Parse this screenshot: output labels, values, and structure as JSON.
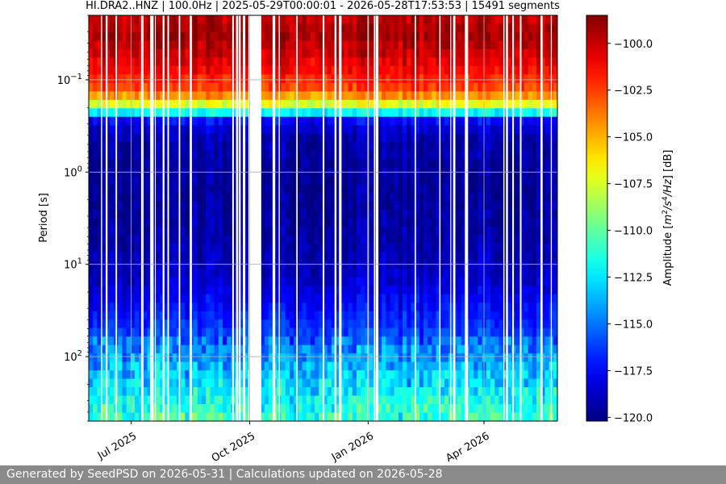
{
  "chart_data": {
    "type": "heatmap",
    "title": "HI.DRA2..HNZ | 100.0Hz | 2025-05-29T00:00:01 - 2026-05-28T17:53:53 | 15491 segments",
    "xlabel": "",
    "ylabel": "Period [s]",
    "x_range": [
      "2025-05-29",
      "2026-05-28"
    ],
    "x_ticks": [
      {
        "date": "2025-07-01",
        "label": "Jul 2025"
      },
      {
        "date": "2025-10-01",
        "label": "Oct 2025"
      },
      {
        "date": "2026-01-01",
        "label": "Jan 2026"
      },
      {
        "date": "2026-04-01",
        "label": "Apr 2026"
      }
    ],
    "y_scale": "log",
    "y_inverted": true,
    "y_range": [
      0.02,
      500
    ],
    "y_ticks": [
      {
        "value": 0.1,
        "base": "10",
        "exp": "−1"
      },
      {
        "value": 1,
        "base": "10",
        "exp": "0"
      },
      {
        "value": 10,
        "base": "10",
        "exp": "1"
      },
      {
        "value": 100,
        "base": "10",
        "exp": "2"
      }
    ],
    "grid": true,
    "colormap": "jet",
    "colorbar": {
      "label_parts": [
        {
          "t": "Amplitude [",
          "s": "n"
        },
        {
          "t": "m",
          "s": "i"
        },
        {
          "t": "2",
          "s": "sup"
        },
        {
          "t": "/",
          "s": "i"
        },
        {
          "t": "s",
          "s": "i"
        },
        {
          "t": "4",
          "s": "sup"
        },
        {
          "t": "/",
          "s": "i"
        },
        {
          "t": "Hz",
          "s": "i"
        },
        {
          "t": "] [dB]",
          "s": "n"
        }
      ],
      "range": [
        -120.2,
        -98.5
      ],
      "ticks": [
        -100.0,
        -102.5,
        -105.0,
        -107.5,
        -110.0,
        -112.5,
        -115.0,
        -117.5,
        -120.0
      ],
      "tick_labels": [
        "−100.0",
        "−102.5",
        "−105.0",
        "−107.5",
        "−110.0",
        "−112.5",
        "−115.0",
        "−117.5",
        "−120.0"
      ]
    },
    "data_gaps": [
      {
        "start": "2025-09-30",
        "end": "2025-10-10"
      }
    ],
    "amplitude_profile_db": [
      {
        "period": 0.02,
        "value": -99.8
      },
      {
        "period": 0.035,
        "value": -99.2
      },
      {
        "period": 0.07,
        "value": -100.8
      },
      {
        "period": 0.12,
        "value": -102.5
      },
      {
        "period": 0.17,
        "value": -105.5
      },
      {
        "period": 0.2,
        "value": -109.0
      },
      {
        "period": 0.24,
        "value": -113.5
      },
      {
        "period": 0.28,
        "value": -117.5
      },
      {
        "period": 0.4,
        "value": -119.0
      },
      {
        "period": 1.0,
        "value": -119.7
      },
      {
        "period": 5.0,
        "value": -119.4
      },
      {
        "period": 15.0,
        "value": -118.5
      },
      {
        "period": 40.0,
        "value": -116.8
      },
      {
        "period": 80.0,
        "value": -115.0
      },
      {
        "period": 150.0,
        "value": -113.5
      },
      {
        "period": 300.0,
        "value": -112.0
      },
      {
        "period": 500.0,
        "value": -111.0
      }
    ]
  },
  "footer": {
    "text": "Generated by SeedPSD on 2026-05-31 | Calculations updated on 2026-05-28"
  }
}
